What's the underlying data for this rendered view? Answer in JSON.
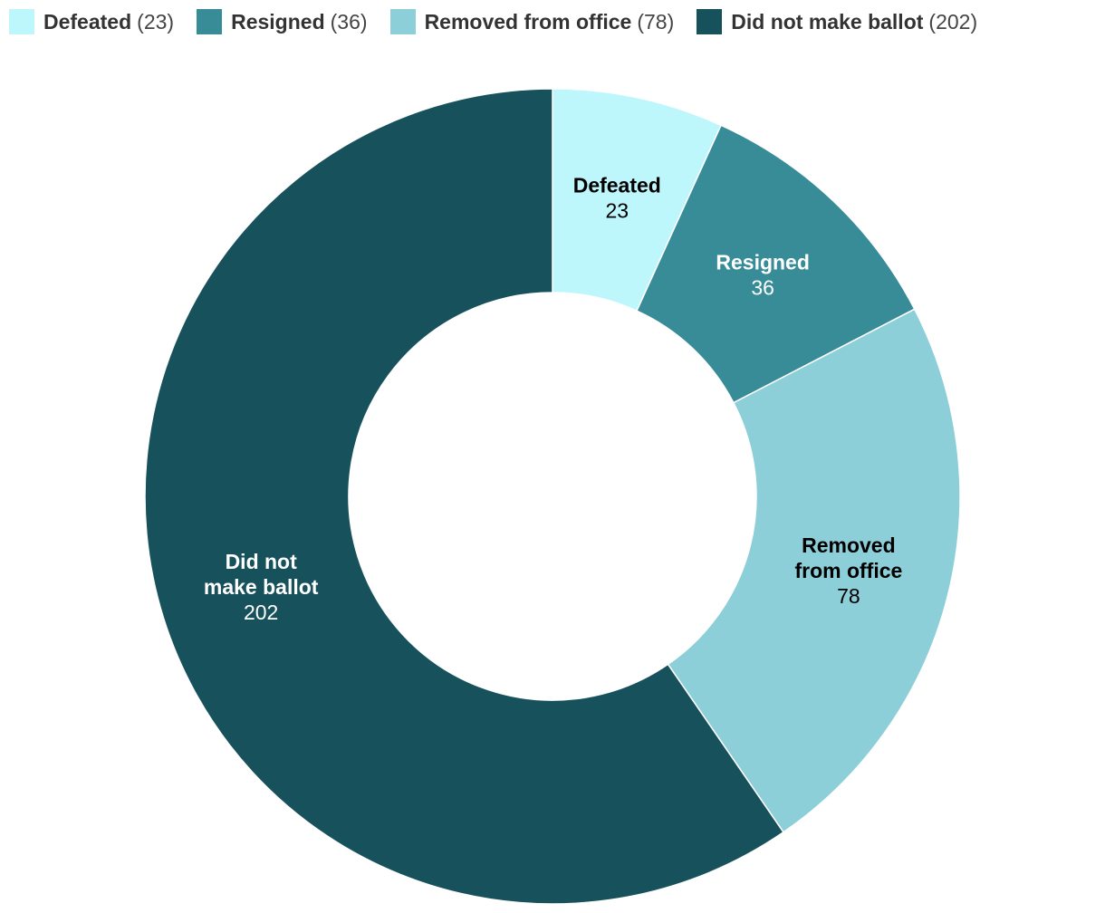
{
  "chart_data": {
    "type": "pie",
    "donut": true,
    "legend_position": "top-left",
    "title": "",
    "categories": [
      "Defeated",
      "Resigned",
      "Removed from office",
      "Did not make ballot"
    ],
    "slice_labels": [
      [
        "Defeated"
      ],
      [
        "Resigned"
      ],
      [
        "Removed",
        "from office"
      ],
      [
        "Did not",
        "make ballot"
      ]
    ],
    "values": [
      23,
      36,
      78,
      202
    ],
    "colors": [
      "#bdf7fc",
      "#378c97",
      "#8ccfd8",
      "#17525c"
    ],
    "label_text_colors": [
      "#000000",
      "#ffffff",
      "#000000",
      "#ffffff"
    ]
  }
}
